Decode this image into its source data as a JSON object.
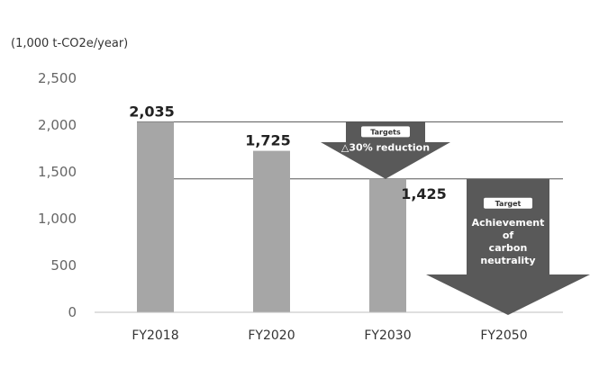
{
  "chart_data": {
    "type": "bar",
    "unit_label": "(1,000 t-CO2e/year)",
    "categories": [
      "FY2018",
      "FY2020",
      "FY2030",
      "FY2050"
    ],
    "values": [
      2035,
      1725,
      1425,
      null
    ],
    "data_labels": [
      "2,035",
      "1,725",
      "1,425",
      ""
    ],
    "yticks": [
      "0",
      "500",
      "1,000",
      "1,500",
      "2,000",
      "2,500"
    ],
    "ylim": [
      0,
      2500
    ],
    "grid": false,
    "bar_color": "#a6a6a6",
    "reference_lines": [
      2035,
      1425
    ],
    "annotations": {
      "reduction": {
        "badge": "Targets",
        "text": "△30% reduction",
        "from": 2035,
        "to": 1425
      },
      "neutrality": {
        "badge": "Target",
        "lines": [
          "Achievement",
          "of",
          "carbon",
          "neutrality"
        ],
        "from": 1425,
        "to": 0
      }
    },
    "arrow_color": "#595959"
  }
}
